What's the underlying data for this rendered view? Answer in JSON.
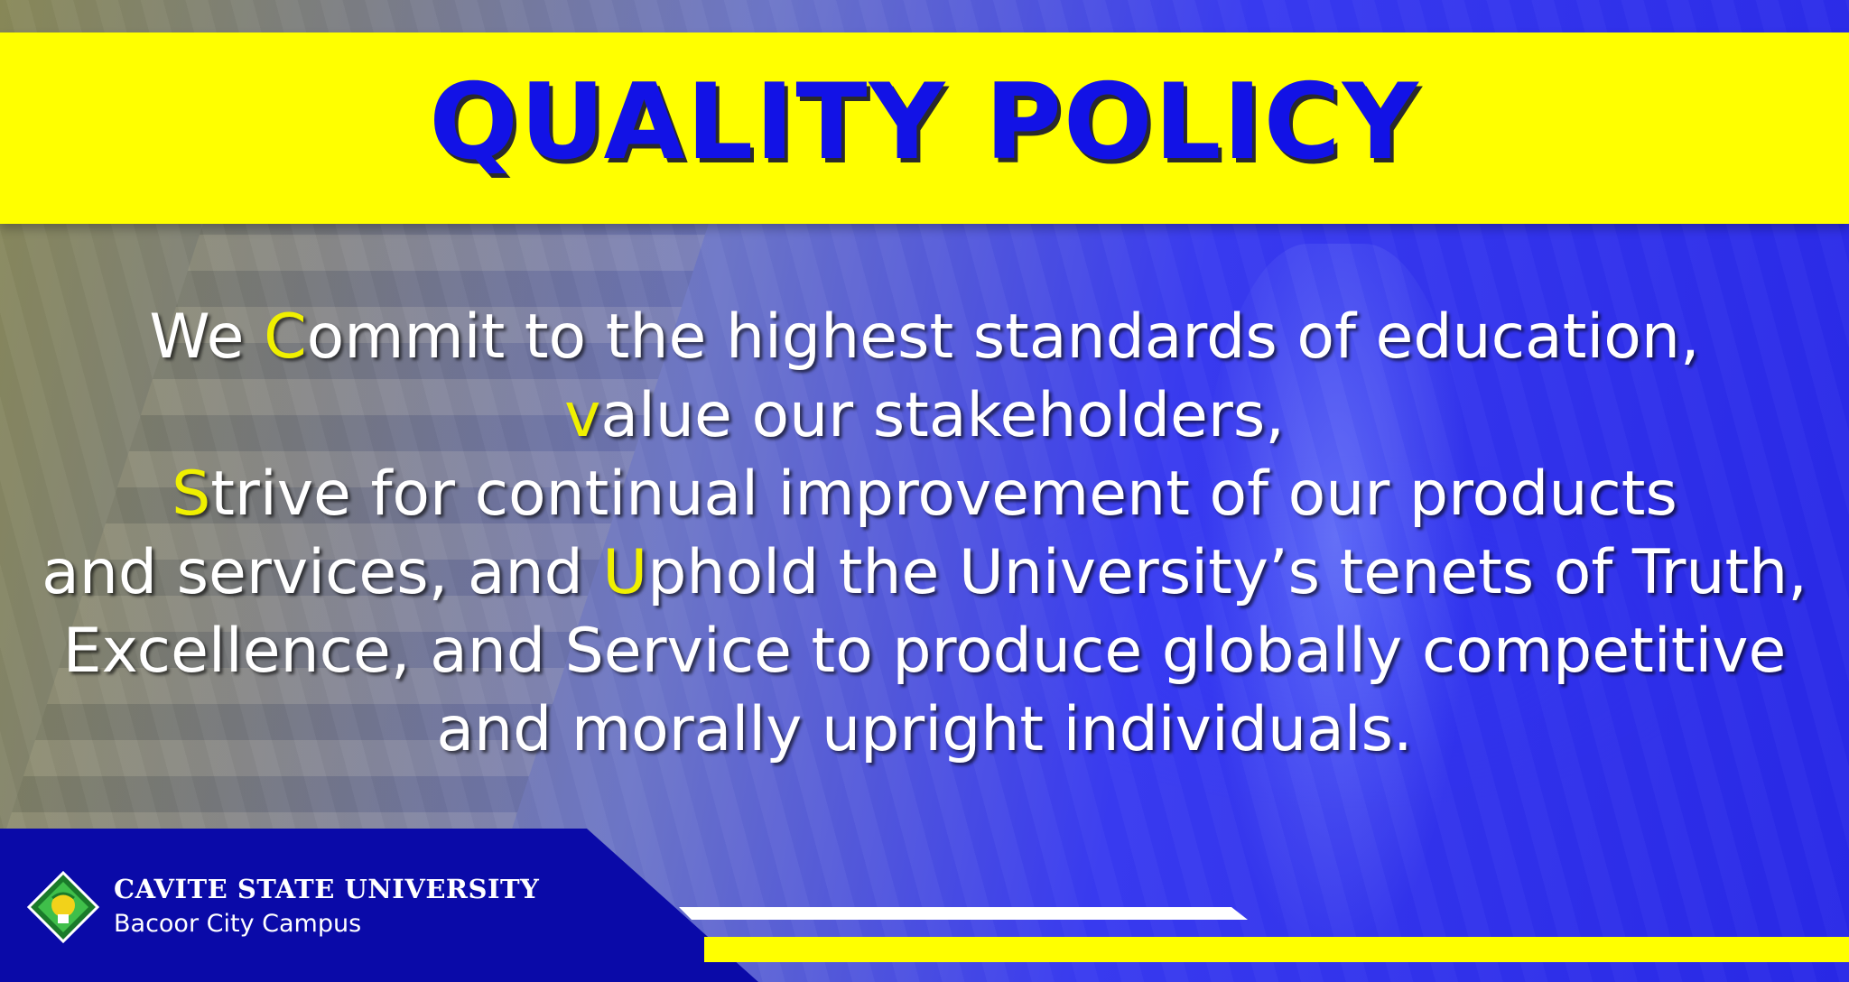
{
  "title": "QUALITY POLICY",
  "policy": {
    "line1": {
      "pre": "We ",
      "hl": "C",
      "post": "ommit to the highest standards of education,"
    },
    "line2": {
      "hl": "v",
      "post": "alue our stakeholders,"
    },
    "line3": {
      "hl": "S",
      "post": "trive for continual improvement of our products"
    },
    "line4": {
      "pre": "and services, and ",
      "hl": "U",
      "post": "phold the University’s tenets of Truth,"
    },
    "line5": "Excellence, and Service to produce globally competitive",
    "line6": "and morally upright individuals."
  },
  "footer": {
    "university": "CAVITE STATE UNIVERSITY",
    "campus": "Bacoor City Campus"
  },
  "colors": {
    "accent_yellow": "#ffff00",
    "title_blue": "#1212e6",
    "footer_blue": "#0a0aa8"
  }
}
